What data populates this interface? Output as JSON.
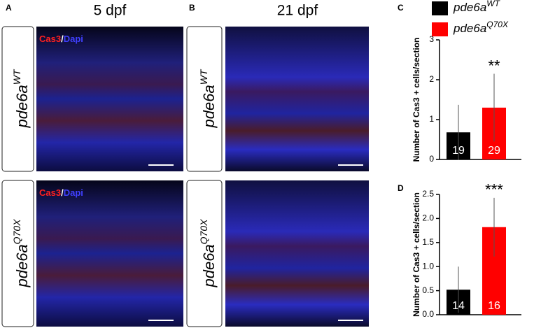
{
  "figure": {
    "panel_a": "A",
    "panel_b": "B",
    "title_a": "5 dpf",
    "title_b": "21 dpf",
    "row_labels": [
      {
        "base": "pde6a",
        "sup": "WT"
      },
      {
        "base": "pde6a",
        "sup": "Q70X"
      }
    ],
    "stain": {
      "cas3": "Cas3",
      "sep": "/",
      "dapi": "Dapi"
    }
  },
  "chart_data": [
    {
      "type": "bar",
      "panel": "C",
      "y_label": "Number of Cas3 + cells/section",
      "ylim": [
        0,
        3
      ],
      "yticks": [
        0,
        1,
        2,
        3
      ],
      "legend": true,
      "annotation": "**",
      "series": [
        {
          "name": "pde6a",
          "name_sup": "WT",
          "color": "#000000",
          "values": [
            0.68
          ],
          "errors": [
            0.69
          ],
          "n_labels": [
            19
          ]
        },
        {
          "name": "pde6a",
          "name_sup": "Q70X",
          "color": "#ff0000",
          "values": [
            1.3
          ],
          "errors": [
            0.85
          ],
          "n_labels": [
            29
          ]
        }
      ]
    },
    {
      "type": "bar",
      "panel": "D",
      "y_label": "Number of Cas3 + cells/section",
      "ylim": [
        0,
        2.5
      ],
      "yticks": [
        {
          "value": 0,
          "label": "0.0"
        },
        0.5,
        {
          "value": 1,
          "label": "1.0"
        },
        1.5,
        {
          "value": 2,
          "label": "2.0"
        },
        2.5
      ],
      "legend": false,
      "annotation": "***",
      "series": [
        {
          "color": "#000000",
          "values": [
            0.52
          ],
          "errors": [
            0.48
          ],
          "n_labels": [
            14
          ]
        },
        {
          "color": "#ff0000",
          "values": [
            1.82
          ],
          "errors": [
            0.61
          ],
          "n_labels": [
            16
          ]
        }
      ]
    }
  ]
}
